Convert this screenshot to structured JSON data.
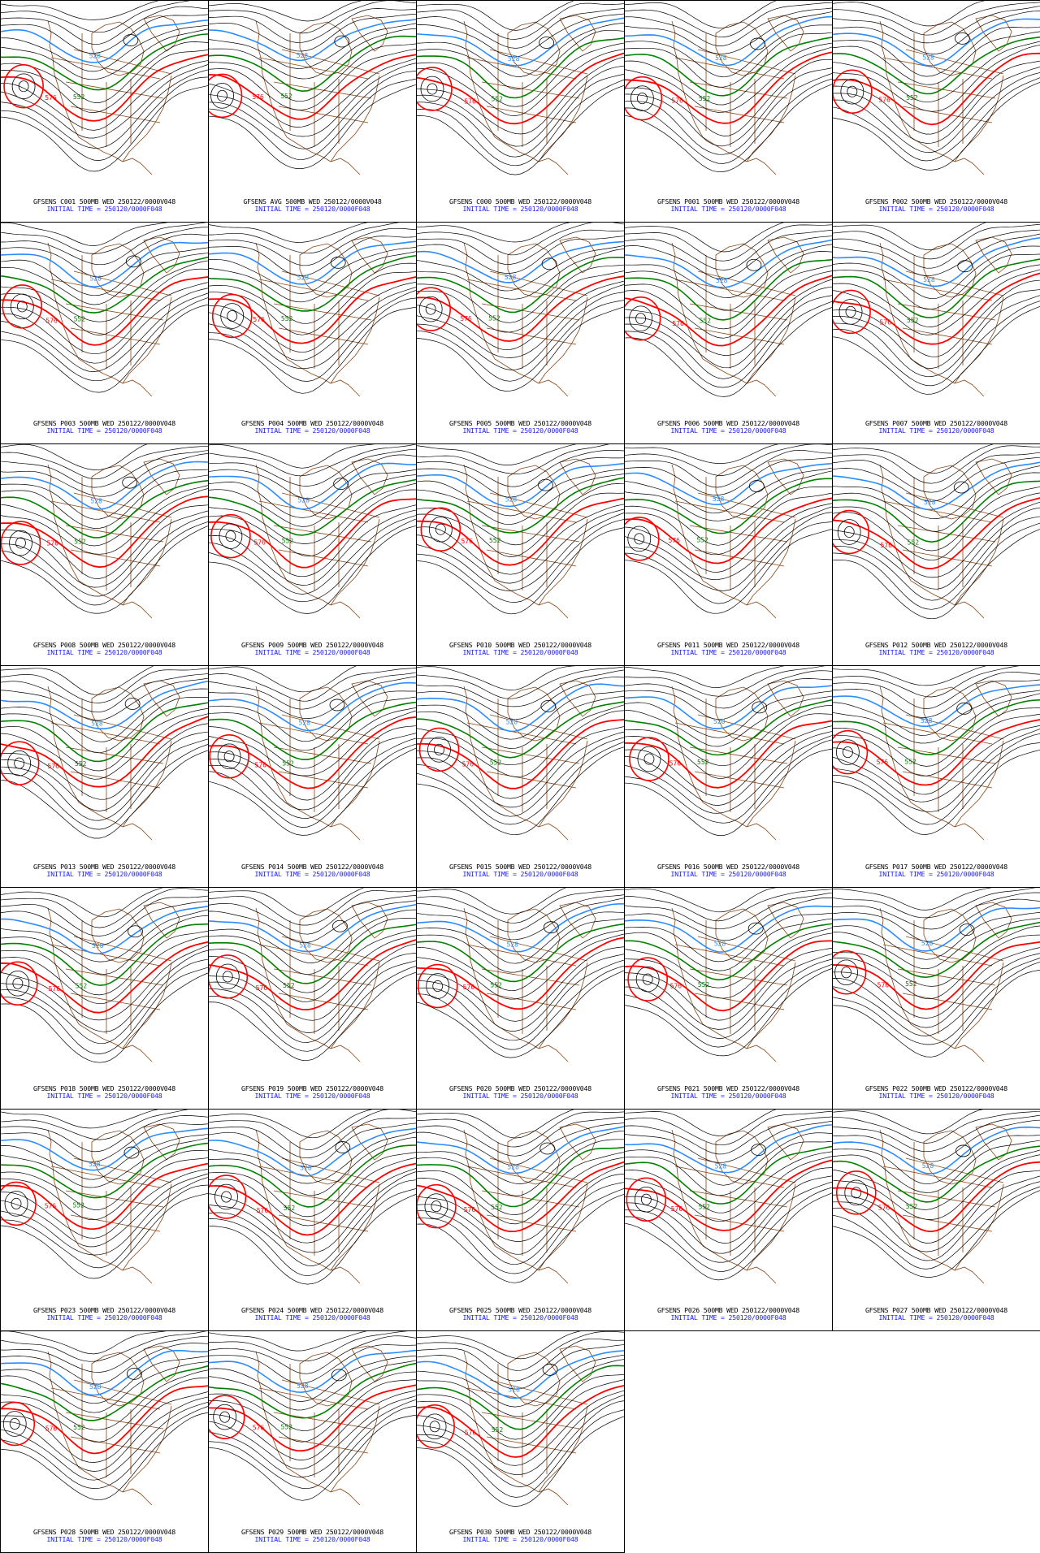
{
  "colors": {
    "background": "#ffffff",
    "contour": "#000000",
    "contour_528": "#2b8cff",
    "contour_552": "#008000",
    "contour_576": "#ff0000",
    "coastline": "#8b4513",
    "caption_line1": "#000000",
    "caption_line2": "#1a1aff"
  },
  "contour_labels": {
    "blue": "528",
    "green": "552",
    "red": "576"
  },
  "panels": [
    {
      "title": "GFSENS C001 500MB WED 250122/0000V048",
      "init": "INITIAL TIME = 250120/0000F048"
    },
    {
      "title": "GFSENS AVG 500MB WED 250122/0000V048",
      "init": "INITIAL TIME = 250120/0000F048"
    },
    {
      "title": "GFSENS C000 500MB WED 250122/0000V048",
      "init": "INITIAL TIME = 250120/0000F048"
    },
    {
      "title": "GFSENS P001 500MB WED 250122/0000V048",
      "init": "INITIAL TIME = 250120/0000F048"
    },
    {
      "title": "GFSENS P002 500MB WED 250122/0000V048",
      "init": "INITIAL TIME = 250120/0000F048"
    },
    {
      "title": "GFSENS P003 500MB WED 250122/0000V048",
      "init": "INITIAL TIME = 250120/0000F048"
    },
    {
      "title": "GFSENS P004 500MB WED 250122/0000V048",
      "init": "INITIAL TIME = 250120/0000F048"
    },
    {
      "title": "GFSENS P005 500MB WED 250122/0000V048",
      "init": "INITIAL TIME = 250120/0000F048"
    },
    {
      "title": "GFSENS P006 500MB WED 250122/0000V048",
      "init": "INITIAL TIME = 250120/0000F048"
    },
    {
      "title": "GFSENS P007 500MB WED 250122/0000V048",
      "init": "INITIAL TIME = 250120/0000F048"
    },
    {
      "title": "GFSENS P008 500MB WED 250122/0000V048",
      "init": "INITIAL TIME = 250120/0000F048"
    },
    {
      "title": "GFSENS P009 500MB WED 250122/0000V048",
      "init": "INITIAL TIME = 250120/0000F048"
    },
    {
      "title": "GFSENS P010 500MB WED 250122/0000V048",
      "init": "INITIAL TIME = 250120/0000F048"
    },
    {
      "title": "GFSENS P011 500MB WED 250122/0000V048",
      "init": "INITIAL TIME = 250120/0000F048"
    },
    {
      "title": "GFSENS P012 500MB WED 250122/0000V048",
      "init": "INITIAL TIME = 250120/0000F048"
    },
    {
      "title": "GFSENS P013 500MB WED 250122/0000V048",
      "init": "INITIAL TIME = 250120/0000F048"
    },
    {
      "title": "GFSENS P014 500MB WED 250122/0000V048",
      "init": "INITIAL TIME = 250120/0000F048"
    },
    {
      "title": "GFSENS P015 500MB WED 250122/0000V048",
      "init": "INITIAL TIME = 250120/0000F048"
    },
    {
      "title": "GFSENS P016 500MB WED 250122/0000V048",
      "init": "INITIAL TIME = 250120/0000F048"
    },
    {
      "title": "GFSENS P017 500MB WED 250122/0000V048",
      "init": "INITIAL TIME = 250120/0000F048"
    },
    {
      "title": "GFSENS P018 500MB WED 250122/0000V048",
      "init": "INITIAL TIME = 250120/0000F048"
    },
    {
      "title": "GFSENS P019 500MB WED 250122/0000V048",
      "init": "INITIAL TIME = 250120/0000F048"
    },
    {
      "title": "GFSENS P020 500MB WED 250122/0000V048",
      "init": "INITIAL TIME = 250120/0000F048"
    },
    {
      "title": "GFSENS P021 500MB WED 250122/0000V048",
      "init": "INITIAL TIME = 250120/0000F048"
    },
    {
      "title": "GFSENS P022 500MB WED 250122/0000V048",
      "init": "INITIAL TIME = 250120/0000F048"
    },
    {
      "title": "GFSENS P023 500MB WED 250122/0000V048",
      "init": "INITIAL TIME = 250120/0000F048"
    },
    {
      "title": "GFSENS P024 500MB WED 250122/0000V048",
      "init": "INITIAL TIME = 250120/0000F048"
    },
    {
      "title": "GFSENS P025 500MB WED 250122/0000V048",
      "init": "INITIAL TIME = 250120/0000F048"
    },
    {
      "title": "GFSENS P026 500MB WED 250122/0000V048",
      "init": "INITIAL TIME = 250120/0000F048"
    },
    {
      "title": "GFSENS P027 500MB WED 250122/0000V048",
      "init": "INITIAL TIME = 250120/0000F048"
    },
    {
      "title": "GFSENS P028 500MB WED 250122/0000V048",
      "init": "INITIAL TIME = 250120/0000F048"
    },
    {
      "title": "GFSENS P029 500MB WED 250122/0000V048",
      "init": "INITIAL TIME = 250120/0000F048"
    },
    {
      "title": "GFSENS P030 500MB WED 250122/0000V048",
      "init": "INITIAL TIME = 250120/0000F048"
    }
  ]
}
